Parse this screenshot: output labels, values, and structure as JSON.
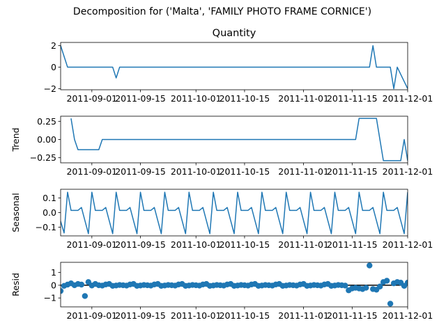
{
  "chart_data": {
    "type": "line",
    "title": "Decomposition for ('Malta', 'FAMILY PHOTO FRAME CORNICE')",
    "x_start": "2011-08-23",
    "x_end": "2011-12-01",
    "x_ticks": [
      {
        "date": "2011-09-01",
        "label": "2011-09-01"
      },
      {
        "date": "2011-09-15",
        "label": "2011-09-15"
      },
      {
        "date": "2011-10-01",
        "label": "2011-10-01"
      },
      {
        "date": "2011-10-15",
        "label": "2011-10-15"
      },
      {
        "date": "2011-11-01",
        "label": "2011-11-01"
      },
      {
        "date": "2011-11-15",
        "label": "2011-11-15"
      },
      {
        "date": "2011-12-01",
        "label": "2011-12-01"
      }
    ],
    "colors": {
      "series": "#1f77b4",
      "zero_line": "#000000"
    },
    "panels": [
      {
        "key": "observed",
        "subtitle": "Quantity",
        "ylabel": "",
        "style": "line",
        "ylim": [
          -2.1,
          2.3
        ],
        "yticks": [
          {
            "v": 2,
            "label": "2"
          },
          {
            "v": 0,
            "label": "0"
          },
          {
            "v": -2,
            "label": "−2"
          }
        ],
        "points": [
          [
            "2011-08-23",
            2
          ],
          [
            "2011-08-25",
            0
          ],
          [
            "2011-09-07",
            0
          ],
          [
            "2011-09-08",
            -1
          ],
          [
            "2011-09-09",
            0
          ],
          [
            "2011-11-20",
            0
          ],
          [
            "2011-11-21",
            2
          ],
          [
            "2011-11-22",
            0
          ],
          [
            "2011-11-26",
            0
          ],
          [
            "2011-11-27",
            -2
          ],
          [
            "2011-11-28",
            0
          ],
          [
            "2011-12-01",
            -2
          ]
        ]
      },
      {
        "key": "trend",
        "subtitle": "",
        "ylabel": "Trend",
        "style": "line",
        "ylim": [
          -0.32,
          0.32
        ],
        "yticks": [
          {
            "v": 0.25,
            "label": "0.25"
          },
          {
            "v": 0,
            "label": "0.00"
          },
          {
            "v": -0.25,
            "label": "−0.25"
          }
        ],
        "points": [
          [
            "2011-08-26",
            0.29
          ],
          [
            "2011-08-27",
            0
          ],
          [
            "2011-08-28",
            -0.14
          ],
          [
            "2011-09-03",
            -0.14
          ],
          [
            "2011-09-04",
            0
          ],
          [
            "2011-11-16",
            0
          ],
          [
            "2011-11-17",
            0.29
          ],
          [
            "2011-11-22",
            0.29
          ],
          [
            "2011-11-24",
            -0.29
          ],
          [
            "2011-11-29",
            -0.29
          ],
          [
            "2011-11-30",
            0
          ],
          [
            "2011-12-01",
            -0.29
          ]
        ]
      },
      {
        "key": "seasonal",
        "subtitle": "",
        "ylabel": "Seasonal",
        "style": "seasonal",
        "ylim": [
          -0.16,
          0.16
        ],
        "yticks": [
          {
            "v": 0.1,
            "label": "0.1"
          },
          {
            "v": 0,
            "label": "0.0"
          },
          {
            "v": -0.1,
            "label": "−0.1"
          }
        ],
        "cycle_start": "2011-08-25",
        "cycle": [
          0.14,
          0.015,
          0.015,
          0.015,
          0.035,
          -0.055,
          -0.145
        ],
        "lead_in": [
          0.03,
          -0.06,
          -0.14
        ]
      },
      {
        "key": "resid",
        "subtitle": "",
        "ylabel": "Resid",
        "style": "scatter",
        "ylim": [
          -1.7,
          1.8
        ],
        "yticks": [
          {
            "v": 1,
            "label": "1"
          },
          {
            "v": 0,
            "label": "0"
          },
          {
            "v": -1,
            "label": "−1"
          }
        ],
        "zero_line": true,
        "base_cycle": [
          0.1,
          -0.05,
          -0.02,
          0.02,
          0.0,
          -0.03,
          0.06
        ],
        "overrides": [
          [
            "2011-08-23",
            -0.45
          ],
          [
            "2011-08-24",
            -0.05
          ],
          [
            "2011-08-25",
            0.05
          ],
          [
            "2011-08-26",
            0.15
          ],
          [
            "2011-08-28",
            0.1
          ],
          [
            "2011-08-29",
            0.05
          ],
          [
            "2011-08-30",
            -0.85
          ],
          [
            "2011-08-31",
            0.25
          ],
          [
            "2011-09-02",
            0.1
          ],
          [
            "2011-11-14",
            -0.4
          ],
          [
            "2011-11-15",
            -0.25
          ],
          [
            "2011-11-16",
            -0.2
          ],
          [
            "2011-11-17",
            -0.25
          ],
          [
            "2011-11-18",
            -0.3
          ],
          [
            "2011-11-19",
            -0.2
          ],
          [
            "2011-11-20",
            1.55
          ],
          [
            "2011-11-21",
            -0.3
          ],
          [
            "2011-11-22",
            -0.35
          ],
          [
            "2011-11-23",
            -0.1
          ],
          [
            "2011-11-24",
            0.25
          ],
          [
            "2011-11-25",
            0.35
          ],
          [
            "2011-11-26",
            -1.45
          ],
          [
            "2011-11-27",
            0.15
          ],
          [
            "2011-11-28",
            0.25
          ],
          [
            "2011-11-29",
            0.2
          ],
          [
            "2011-11-30",
            -0.05
          ],
          [
            "2011-12-01",
            0.2
          ]
        ]
      }
    ]
  }
}
